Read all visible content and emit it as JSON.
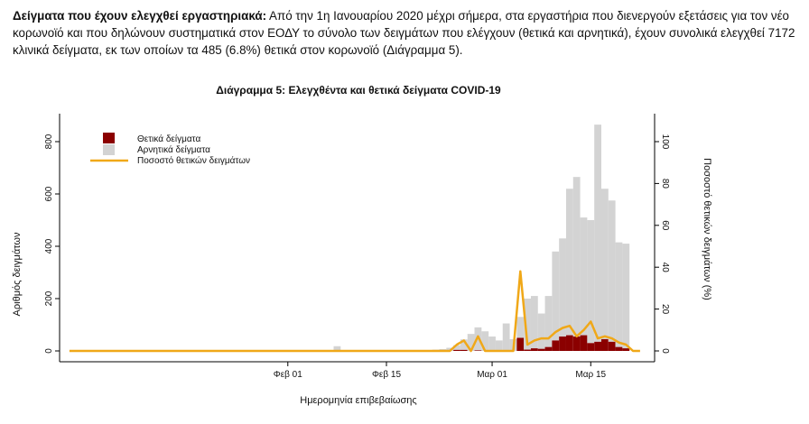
{
  "intro": {
    "bold_lead": "Δείγματα που έχουν ελεγχθεί εργαστηριακά:",
    "text": "Από την 1η Ιανουαρίου 2020 μέχρι σήμερα, στα εργαστήρια που διενεργούν εξετάσεις για τον νέο κορωνοϊό και που δηλώνουν συστηματικά στον ΕΟΔΥ το σύνολο των δειγμάτων που ελέγχουν (θετικά και αρνητικά), έχουν συνολικά ελεγχθεί 7172 κλινικά δείγματα, εκ των οποίων τα 485 (6.8%) θετικά στον κορωνοϊό (Διάγραμμα 5)."
  },
  "chart_data": {
    "type": "bar",
    "title": "Διάγραμμα 5: Ελεγχθέντα και θετικά δείγματα COVID-19",
    "xlabel": "Ημερομηνία επιβεβαίωσης",
    "ylabel": "Αριθμός δειγμάτων",
    "y2label": "Ποσοστό θετικών δειγμάτων (%)",
    "stacked": true,
    "x_start": "2020-01-01",
    "x_end": "2020-03-22",
    "x_ticks": [
      {
        "date": "2020-02-01",
        "label": "Φεβ 01"
      },
      {
        "date": "2020-02-15",
        "label": "Φεβ 15"
      },
      {
        "date": "2020-03-01",
        "label": "Μαρ 01"
      },
      {
        "date": "2020-03-15",
        "label": "Μαρ 15"
      }
    ],
    "ylim": [
      0,
      800
    ],
    "yticks": [
      0,
      200,
      400,
      600,
      800
    ],
    "y2lim": [
      0,
      100
    ],
    "y2ticks": [
      0,
      20,
      40,
      60,
      80,
      100
    ],
    "legend_position": "top-left",
    "colors": {
      "positive": "#8b0000",
      "negative": "#d3d3d3",
      "percent": "#f0a818"
    },
    "legend": [
      "Θετικά δείγματα",
      "Αρνητικά δείγματα",
      "Ποσοστό θετικών δειγμάτων"
    ],
    "dates": [
      "2020-02-05",
      "2020-02-08",
      "2020-02-19",
      "2020-02-22",
      "2020-02-23",
      "2020-02-24",
      "2020-02-25",
      "2020-02-26",
      "2020-02-27",
      "2020-02-28",
      "2020-02-29",
      "2020-03-01",
      "2020-03-02",
      "2020-03-03",
      "2020-03-04",
      "2020-03-05",
      "2020-03-06",
      "2020-03-07",
      "2020-03-08",
      "2020-03-09",
      "2020-03-10",
      "2020-03-11",
      "2020-03-12",
      "2020-03-13",
      "2020-03-14",
      "2020-03-15",
      "2020-03-16",
      "2020-03-17",
      "2020-03-18",
      "2020-03-19",
      "2020-03-20"
    ],
    "series": [
      {
        "name": "Θετικά δείγματα",
        "values": [
          0,
          0,
          0,
          0,
          0,
          0,
          4,
          4,
          0,
          2,
          0,
          0,
          0,
          0,
          0,
          50,
          5,
          10,
          8,
          15,
          40,
          55,
          60,
          55,
          60,
          30,
          35,
          45,
          35,
          15,
          10
        ]
      },
      {
        "name": "Αρνητικά δείγματα",
        "values": [
          3,
          18,
          3,
          5,
          7,
          12,
          18,
          40,
          65,
          88,
          75,
          55,
          40,
          105,
          45,
          80,
          195,
          200,
          135,
          195,
          340,
          375,
          560,
          610,
          450,
          470,
          830,
          575,
          540,
          400,
          400
        ]
      },
      {
        "name": "Ποσοστό θετικών δειγμάτων",
        "values": [
          0,
          0,
          0,
          0,
          0,
          0,
          3,
          5,
          0,
          7,
          0,
          0,
          0,
          0,
          0,
          38,
          3,
          5,
          6,
          6,
          9,
          11,
          12,
          7,
          10,
          14,
          6,
          7,
          6,
          4,
          3
        ]
      }
    ]
  }
}
